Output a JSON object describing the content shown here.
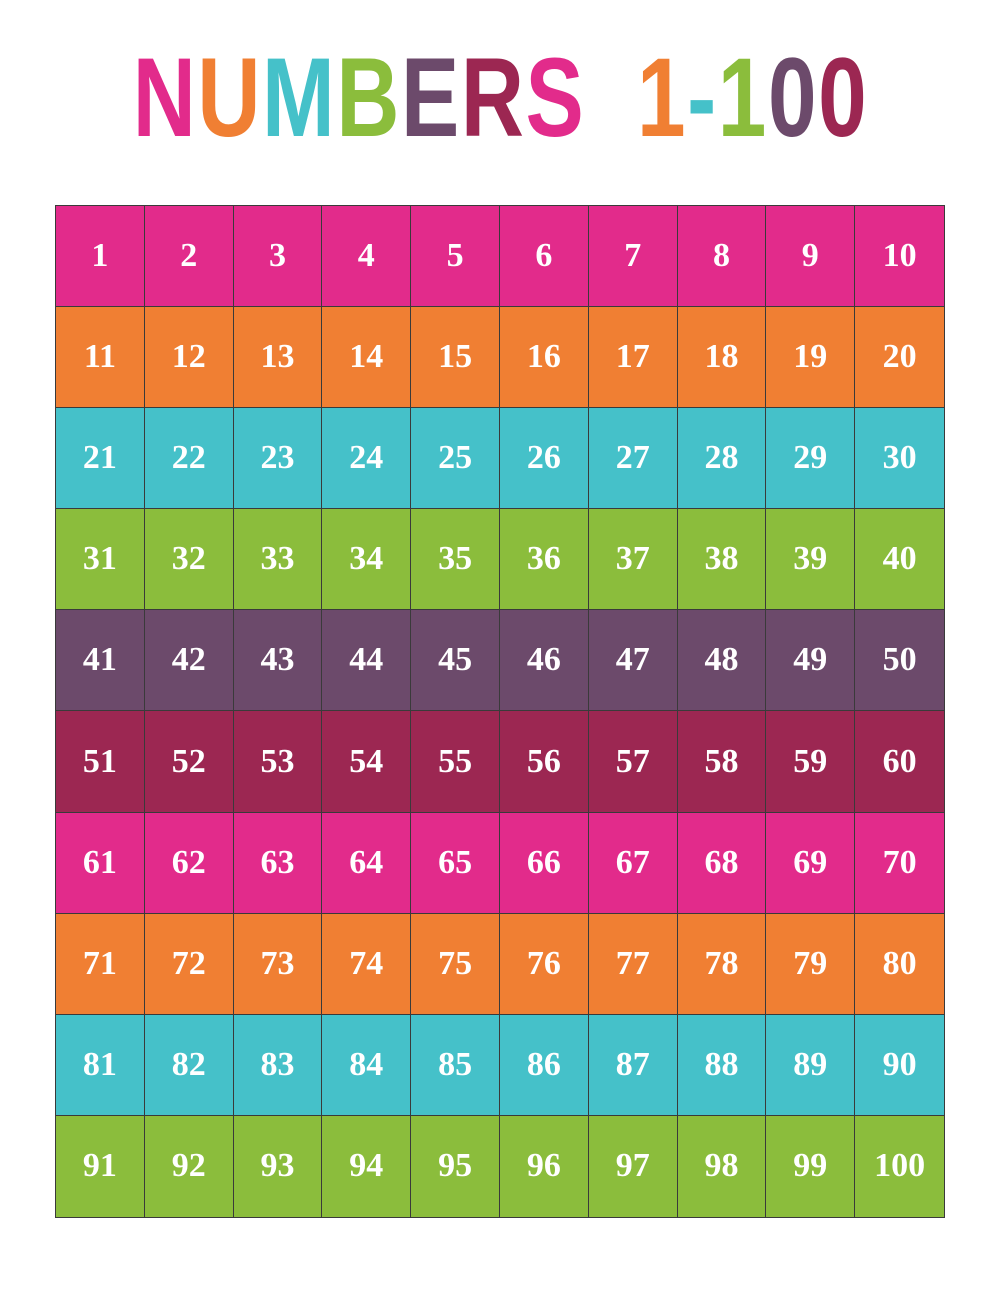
{
  "title": {
    "text": "NUMBERS 1-100",
    "letters": [
      {
        "char": "N",
        "color": "#e22b8b"
      },
      {
        "char": "U",
        "color": "#f07f33"
      },
      {
        "char": "M",
        "color": "#45c1c9"
      },
      {
        "char": "B",
        "color": "#8bbd3c"
      },
      {
        "char": "E",
        "color": "#6c4a6b"
      },
      {
        "char": "R",
        "color": "#9c2752"
      },
      {
        "char": "S",
        "color": "#e22b8b"
      },
      {
        "char": " ",
        "color": "#ffffff"
      },
      {
        "char": "1",
        "color": "#f07f33"
      },
      {
        "char": "-",
        "color": "#45c1c9"
      },
      {
        "char": "1",
        "color": "#8bbd3c"
      },
      {
        "char": "0",
        "color": "#6c4a6b"
      },
      {
        "char": "0",
        "color": "#9c2752"
      }
    ]
  },
  "grid": {
    "row_colors": [
      "#e22b8b",
      "#f07f33",
      "#45c1c9",
      "#8bbd3c",
      "#6c4a6b",
      "#9c2752",
      "#e22b8b",
      "#f07f33",
      "#45c1c9",
      "#8bbd3c"
    ],
    "rows": [
      [
        "1",
        "2",
        "3",
        "4",
        "5",
        "6",
        "7",
        "8",
        "9",
        "10"
      ],
      [
        "11",
        "12",
        "13",
        "14",
        "15",
        "16",
        "17",
        "18",
        "19",
        "20"
      ],
      [
        "21",
        "22",
        "23",
        "24",
        "25",
        "26",
        "27",
        "28",
        "29",
        "30"
      ],
      [
        "31",
        "32",
        "33",
        "34",
        "35",
        "36",
        "37",
        "38",
        "39",
        "40"
      ],
      [
        "41",
        "42",
        "43",
        "44",
        "45",
        "46",
        "47",
        "48",
        "49",
        "50"
      ],
      [
        "51",
        "52",
        "53",
        "54",
        "55",
        "56",
        "57",
        "58",
        "59",
        "60"
      ],
      [
        "61",
        "62",
        "63",
        "64",
        "65",
        "66",
        "67",
        "68",
        "69",
        "70"
      ],
      [
        "71",
        "72",
        "73",
        "74",
        "75",
        "76",
        "77",
        "78",
        "79",
        "80"
      ],
      [
        "81",
        "82",
        "83",
        "84",
        "85",
        "86",
        "87",
        "88",
        "89",
        "90"
      ],
      [
        "91",
        "92",
        "93",
        "94",
        "95",
        "96",
        "97",
        "98",
        "99",
        "100"
      ]
    ]
  }
}
